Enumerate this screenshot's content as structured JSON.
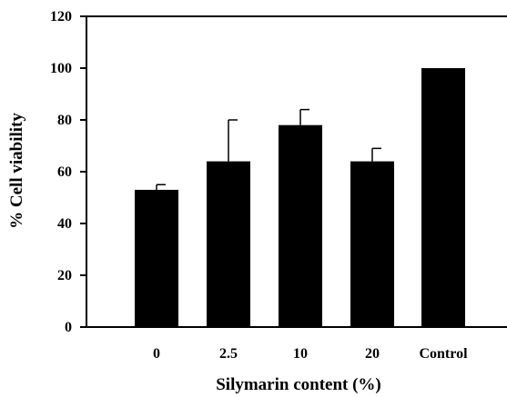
{
  "chart_data": {
    "type": "bar",
    "title": "",
    "xlabel": "Silymarin content (%)",
    "ylabel": "% Cell viability",
    "categories": [
      "0",
      "2.5",
      "10",
      "20",
      "Control"
    ],
    "series": [
      {
        "values": [
          53,
          64,
          78,
          64,
          100
        ],
        "error": [
          2,
          16,
          6,
          5,
          0
        ]
      }
    ],
    "ylim": [
      0,
      120
    ],
    "yticks": [
      0,
      20,
      40,
      60,
      80,
      100,
      120
    ],
    "grid": false,
    "legend": "none",
    "bar_color": "#000000"
  }
}
